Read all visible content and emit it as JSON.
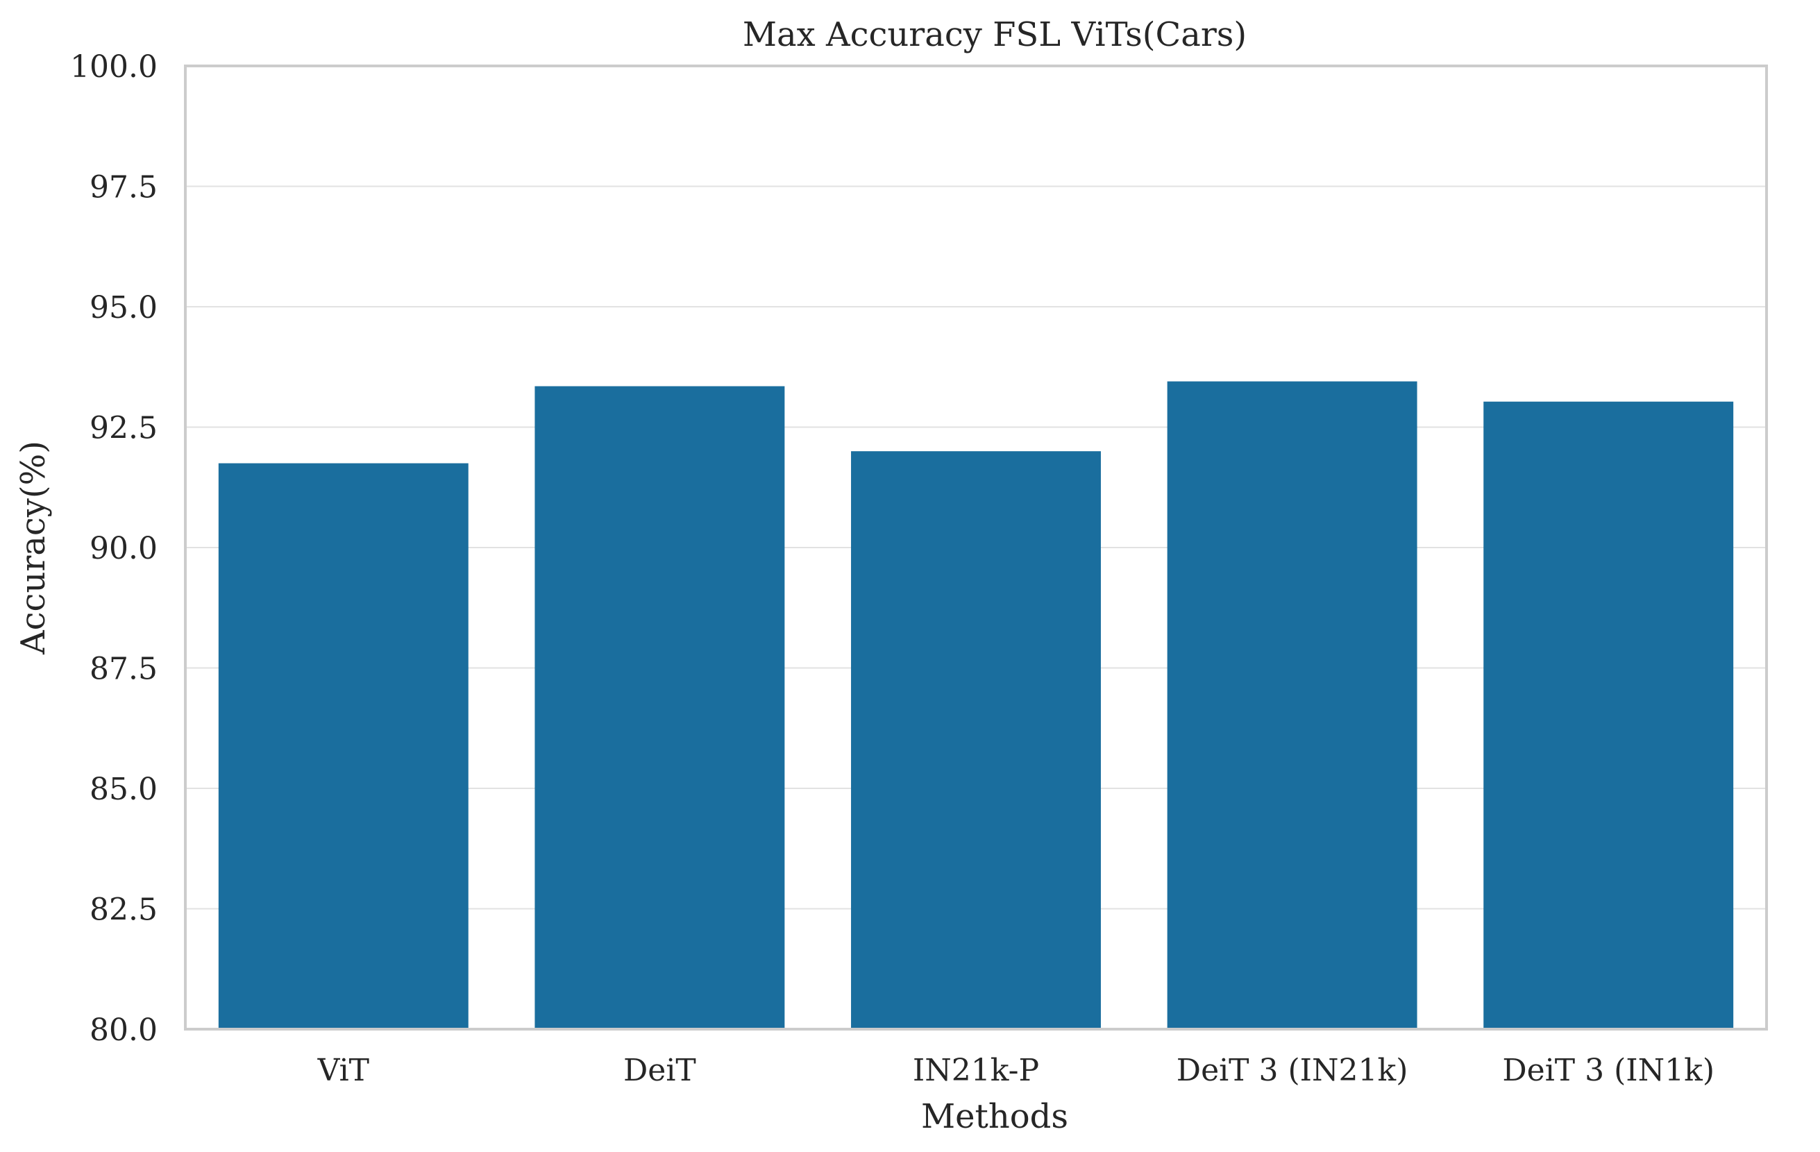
{
  "chart_data": {
    "type": "bar",
    "title": "Max Accuracy FSL ViTs(Cars)",
    "xlabel": "Methods",
    "ylabel": "Accuracy(%)",
    "categories": [
      "ViT",
      "DeiT",
      "IN21k-P",
      "DeiT 3 (IN21k)",
      "DeiT 3 (IN1k)"
    ],
    "values": [
      91.75,
      93.35,
      92.0,
      93.45,
      93.03
    ],
    "ylim": [
      80.0,
      100.0
    ],
    "yticks": [
      "80.0",
      "82.5",
      "85.0",
      "87.5",
      "90.0",
      "92.5",
      "95.0",
      "97.5",
      "100.0"
    ],
    "grid": true,
    "legend": "none",
    "colors": {
      "bar": "#1a6e9e",
      "grid": "#e2e2e2",
      "frame": "#cccccc",
      "text": "#262626"
    }
  }
}
